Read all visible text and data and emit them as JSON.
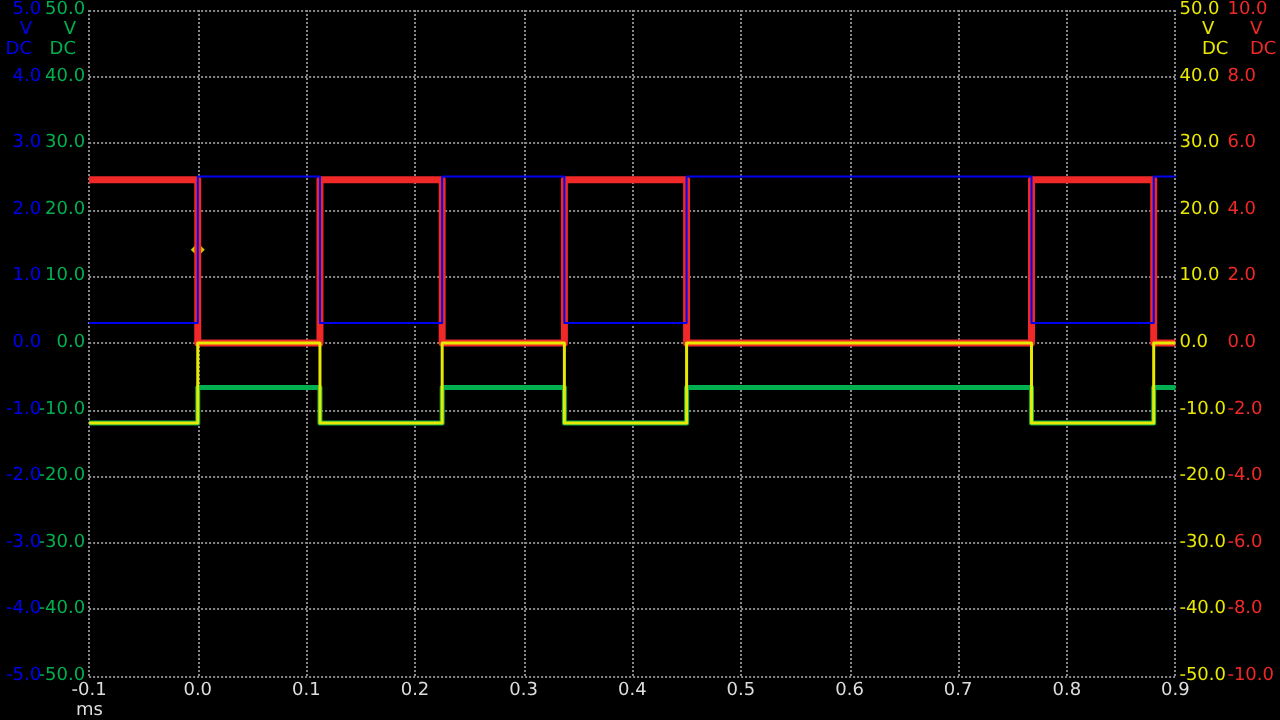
{
  "chart_data": {
    "type": "step",
    "xlabel": "ms",
    "ylabel": "V\nDC",
    "y2label": "V\nDC",
    "y3label": "V\nDC",
    "x": [
      -0.1,
      0,
      0.1125,
      0.225,
      0.3375,
      0.45,
      0.7675,
      0.88,
      0.9
    ],
    "xlim": [
      -0.1,
      0.9
    ],
    "xticks": [
      {
        "value": -0.1,
        "label": "-0.1"
      },
      {
        "value": 0,
        "label": "0.0"
      },
      0.1,
      0.2,
      0.3,
      0.4,
      0.5,
      0.6,
      0.7,
      0.8,
      0.9
    ],
    "y3lim": [
      -5,
      5
    ],
    "y3ticks": [
      {
        "value": -5,
        "label": "-5.0"
      },
      {
        "value": -4,
        "label": "-4.0"
      },
      {
        "value": -3,
        "label": "-3.0"
      },
      {
        "value": -2,
        "label": "-2.0"
      },
      {
        "value": -1,
        "label": "-1.0"
      },
      {
        "value": 0,
        "label": "0.0"
      },
      {
        "value": 1,
        "label": "1.0"
      },
      {
        "value": 2,
        "label": "2.0"
      },
      {
        "value": 3,
        "label": "3.0"
      },
      {
        "value": 4,
        "label": "4.0"
      },
      {
        "value": 5,
        "label": "5.0"
      }
    ],
    "ylim": [
      -50,
      50
    ],
    "yticks": [
      {
        "value": -50,
        "label": "-50.0"
      },
      {
        "value": -40,
        "label": "-40.0"
      },
      {
        "value": -30,
        "label": "-30.0"
      },
      {
        "value": -20,
        "label": "-20.0"
      },
      {
        "value": -10,
        "label": "-10.0"
      },
      {
        "value": 0,
        "label": "0.0"
      },
      {
        "value": 10,
        "label": "10.0"
      },
      {
        "value": 20,
        "label": "20.0"
      },
      {
        "value": 30,
        "label": "30.0"
      },
      {
        "value": 40,
        "label": "40.0"
      },
      {
        "value": 50,
        "label": "50.0"
      }
    ],
    "y2lim": [
      -10,
      10
    ],
    "y2ticks": [
      {
        "value": -10,
        "label": "-10.0"
      },
      {
        "value": -8,
        "label": "-8.0"
      },
      {
        "value": -6,
        "label": "-6.0"
      },
      {
        "value": -4,
        "label": "-4.0"
      },
      {
        "value": -2,
        "label": "-2.0"
      },
      {
        "value": 0,
        "label": "0.0"
      },
      {
        "value": 2,
        "label": "2.0"
      },
      {
        "value": 4,
        "label": "4.0"
      },
      {
        "value": 6,
        "label": "6.0"
      },
      {
        "value": 8,
        "label": "8.0"
      },
      {
        "value": 10,
        "label": "10.0"
      }
    ],
    "series": [
      {
        "color": "#f02828",
        "axis": "y2",
        "values": [
          4.9,
          0,
          4.9,
          0,
          4.9,
          0,
          4.9,
          0,
          0
        ]
      },
      {
        "color": "#00b050",
        "axis": "y",
        "values": [
          -12,
          -6.7,
          -12,
          -6.7,
          -12,
          -6.7,
          -12,
          -6.7,
          -6.7
        ]
      },
      {
        "color": "#e8e800",
        "axis": "y",
        "values": [
          -12,
          0,
          -12,
          0,
          -12,
          0,
          -12,
          0,
          0
        ]
      },
      {
        "color": "#0000f0",
        "axis": "y3",
        "values": [
          0.3,
          2.5,
          0.3,
          2.5,
          0.3,
          2.5,
          0.3,
          2.5,
          2.5
        ]
      },
      {
        "type": "scatter",
        "color": "#ffff00",
        "axis": "y3",
        "marker": "diamond",
        "x": [
          0
        ],
        "values": [
          1.4
        ]
      }
    ],
    "grid": true,
    "marker": "none",
    "line_style": "solid"
  }
}
